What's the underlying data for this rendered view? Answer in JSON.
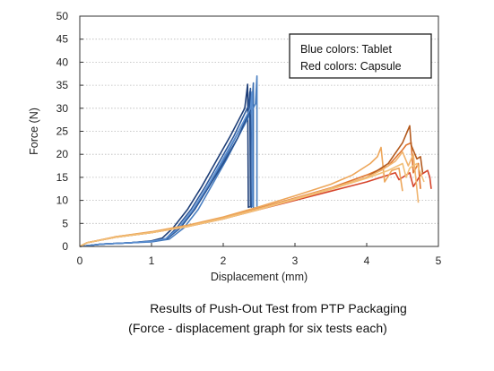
{
  "chart_data": {
    "type": "line",
    "xlabel": "Displacement (mm)",
    "ylabel": "Force (N)",
    "xlim": [
      0,
      5
    ],
    "ylim": [
      0,
      50
    ],
    "xticks": [
      0,
      1,
      2,
      3,
      4,
      5
    ],
    "yticks": [
      0,
      5,
      10,
      15,
      20,
      25,
      30,
      35,
      40,
      45,
      50
    ],
    "grid": "horizontal dotted",
    "legend_position": "top-right",
    "legend_lines": [
      "Blue colors: Tablet",
      "Red colors: Capsule"
    ],
    "series": [
      {
        "color": "#1f3f78",
        "x": [
          0,
          0.3,
          0.7,
          1.0,
          1.15,
          1.3,
          1.5,
          1.7,
          1.9,
          2.1,
          2.3,
          2.34,
          2.35,
          2.35,
          2.37
        ],
        "y": [
          0,
          0.5,
          0.8,
          1.2,
          1.8,
          4,
          8,
          13,
          18.5,
          24,
          30,
          35.2,
          8.5,
          8.7,
          8.5
        ]
      },
      {
        "color": "#2e5a9c",
        "x": [
          0,
          0.3,
          0.7,
          1.0,
          1.2,
          1.35,
          1.55,
          1.75,
          1.95,
          2.15,
          2.35,
          2.38,
          2.39,
          2.4
        ],
        "y": [
          0,
          0.5,
          0.8,
          1.1,
          1.7,
          4,
          8,
          13,
          18.5,
          24,
          30.5,
          34.3,
          8.5,
          8.7
        ]
      },
      {
        "color": "#3d6fb0",
        "x": [
          0,
          0.3,
          0.7,
          1.0,
          1.2,
          1.4,
          1.6,
          1.8,
          2.0,
          2.2,
          2.4,
          2.42,
          2.42,
          2.43
        ],
        "y": [
          0,
          0.5,
          0.8,
          1.1,
          1.6,
          4,
          8,
          13,
          18.5,
          24.5,
          30.5,
          35.5,
          8.5,
          8.6
        ]
      },
      {
        "color": "#4a7fc1",
        "x": [
          0,
          0.3,
          0.7,
          1.0,
          1.25,
          1.45,
          1.65,
          1.85,
          2.05,
          2.25,
          2.45,
          2.47,
          2.47,
          2.48
        ],
        "y": [
          0,
          0.5,
          0.8,
          1.0,
          1.6,
          4,
          8,
          13.5,
          19,
          25,
          31,
          37,
          8.5,
          8.6
        ]
      },
      {
        "color": "#27508e",
        "x": [
          0,
          0.3,
          0.7,
          1.0,
          1.22,
          1.4,
          1.6,
          1.8,
          2.0,
          2.2,
          2.36,
          2.37,
          2.38
        ],
        "y": [
          0,
          0.5,
          0.8,
          1.1,
          1.7,
          4,
          8,
          13,
          18,
          23.5,
          29,
          33.5,
          8.5
        ]
      },
      {
        "color": "#5a8ed0",
        "x": [
          0,
          0.3,
          0.7,
          1.0,
          1.2,
          1.38,
          1.58,
          1.78,
          1.98,
          2.18,
          2.38,
          2.4,
          2.41
        ],
        "y": [
          0,
          0.5,
          0.8,
          1.1,
          1.7,
          4,
          8,
          13,
          18.5,
          24,
          30,
          33.5,
          8.5
        ]
      },
      {
        "color": "#d6452c",
        "x": [
          0,
          0.1,
          0.5,
          1.0,
          1.5,
          2.0,
          2.5,
          3.0,
          3.5,
          4.0,
          4.2,
          4.4,
          4.45,
          4.6,
          4.65,
          4.75,
          4.85,
          4.88,
          4.9
        ],
        "y": [
          0,
          0.8,
          2,
          3,
          4.3,
          6,
          8,
          10,
          12,
          14,
          15,
          16,
          14.5,
          16,
          13,
          15.5,
          16.5,
          15,
          12.5
        ]
      },
      {
        "color": "#e0752f",
        "x": [
          0,
          0.1,
          0.5,
          1.0,
          1.5,
          2.0,
          2.5,
          3.0,
          3.5,
          4.0,
          4.3,
          4.5,
          4.55,
          4.62,
          4.65,
          4.72,
          4.75
        ],
        "y": [
          0,
          0.8,
          2.1,
          3.1,
          4.5,
          6.2,
          8.3,
          10.5,
          12.7,
          15.5,
          17.5,
          21,
          22,
          22.5,
          16,
          18,
          12.5
        ]
      },
      {
        "color": "#eda65a",
        "x": [
          0,
          0.1,
          0.5,
          1.0,
          1.5,
          2.0,
          2.5,
          3.0,
          3.5,
          3.8,
          4.05,
          4.15,
          4.2,
          4.25,
          4.35,
          4.45,
          4.5
        ],
        "y": [
          0,
          0.8,
          2.1,
          3.2,
          4.6,
          6.4,
          8.6,
          11,
          13.5,
          15.5,
          18,
          19.5,
          21.5,
          14,
          16.5,
          17,
          12
        ]
      },
      {
        "color": "#b35a1e",
        "x": [
          0,
          0.1,
          0.5,
          1.0,
          1.5,
          2.0,
          2.5,
          3.0,
          3.5,
          4.0,
          4.3,
          4.5,
          4.6,
          4.62,
          4.7,
          4.75,
          4.78
        ],
        "y": [
          0,
          0.8,
          2,
          3,
          4.4,
          6,
          8.1,
          10.3,
          12.5,
          15,
          18,
          22.5,
          26.2,
          22,
          19,
          19.5,
          16
        ]
      },
      {
        "color": "#f0b46e",
        "x": [
          0,
          0.1,
          0.5,
          1.0,
          1.5,
          2.0,
          2.5,
          3.0,
          3.5,
          4.0,
          4.2,
          4.4,
          4.5,
          4.58,
          4.65,
          4.72
        ],
        "y": [
          0,
          0.8,
          2,
          3,
          4.4,
          6.1,
          8.2,
          10.4,
          12.6,
          15,
          16.5,
          18.5,
          20.5,
          17.5,
          20,
          9.5
        ]
      },
      {
        "color": "#f2c078",
        "x": [
          0,
          0.1,
          0.5,
          1.0,
          1.5,
          2.0,
          2.5,
          3.0,
          3.5,
          4.0,
          4.3,
          4.5,
          4.55,
          4.6,
          4.7,
          4.8
        ],
        "y": [
          0,
          0.8,
          2,
          3,
          4.3,
          6,
          8,
          10.2,
          12.4,
          14.8,
          16.5,
          18,
          15,
          17,
          18,
          14
        ]
      }
    ]
  },
  "caption": {
    "line1": "Results of Push-Out Test from PTP Packaging",
    "line2": "(Force - displacement graph for six tests each)"
  }
}
